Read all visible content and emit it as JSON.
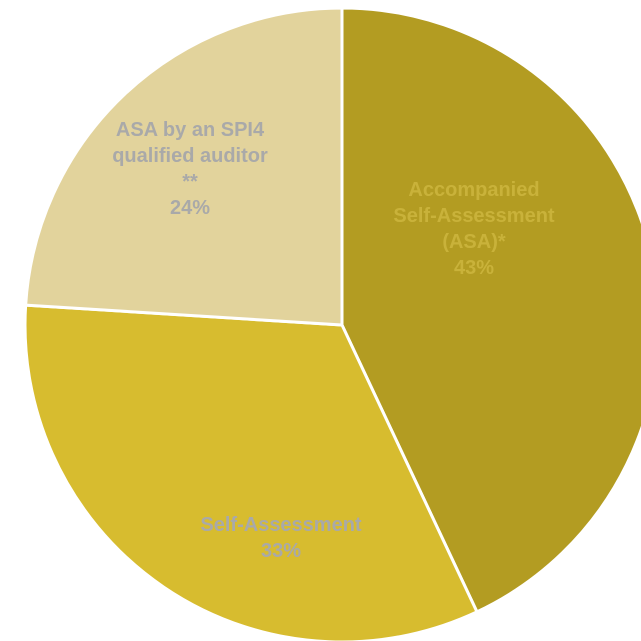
{
  "chart_data": {
    "type": "pie",
    "title": "",
    "start_angle_deg": 0,
    "direction": "clockwise",
    "slices": [
      {
        "label_lines": [
          "Accompanied",
          "Self-Assessment",
          "(ASA)*"
        ],
        "value": 43,
        "value_label": "43%",
        "color": "#B39C22",
        "label_color": "#C9B23A"
      },
      {
        "label_lines": [
          "Self-Assessment"
        ],
        "value": 33,
        "value_label": "33%",
        "color": "#D7BC2F",
        "label_color": "#A9A9A9"
      },
      {
        "label_lines": [
          "ASA by an SPI4",
          "qualified auditor",
          "**"
        ],
        "value": 24,
        "value_label": "24%",
        "color": "#E2D39C",
        "label_color": "#A9A9A9"
      }
    ]
  }
}
